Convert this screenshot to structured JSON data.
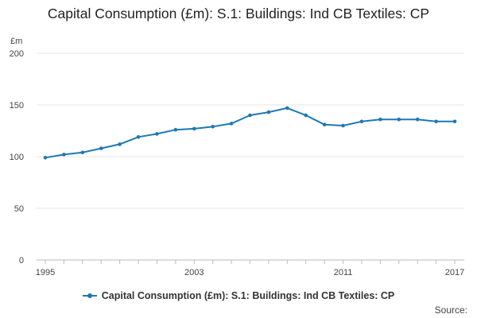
{
  "chart_data": {
    "type": "line",
    "title": "Capital Consumption (£m): S.1: Buildings: Ind CB Textiles: CP",
    "ylabel": "£m",
    "xlabel": "",
    "ylim": [
      0,
      200
    ],
    "yticks": [
      0,
      50,
      100,
      150,
      200
    ],
    "xlim": [
      1995,
      2017
    ],
    "xticks": [
      1995,
      2003,
      2011,
      2017
    ],
    "x": [
      1995,
      1996,
      1997,
      1998,
      1999,
      2000,
      2001,
      2002,
      2003,
      2004,
      2005,
      2006,
      2007,
      2008,
      2009,
      2010,
      2011,
      2012,
      2013,
      2014,
      2015,
      2016,
      2017
    ],
    "series": [
      {
        "name": "Capital Consumption (£m): S.1: Buildings: Ind CB Textiles: CP",
        "values": [
          99,
          102,
          104,
          108,
          112,
          119,
          122,
          126,
          127,
          129,
          132,
          140,
          143,
          147,
          140,
          131,
          130,
          134,
          136,
          136,
          136,
          134,
          134
        ],
        "color": "#1f78b4"
      }
    ],
    "grid": true,
    "legend": "bottom-center"
  },
  "source_label": "Source:"
}
